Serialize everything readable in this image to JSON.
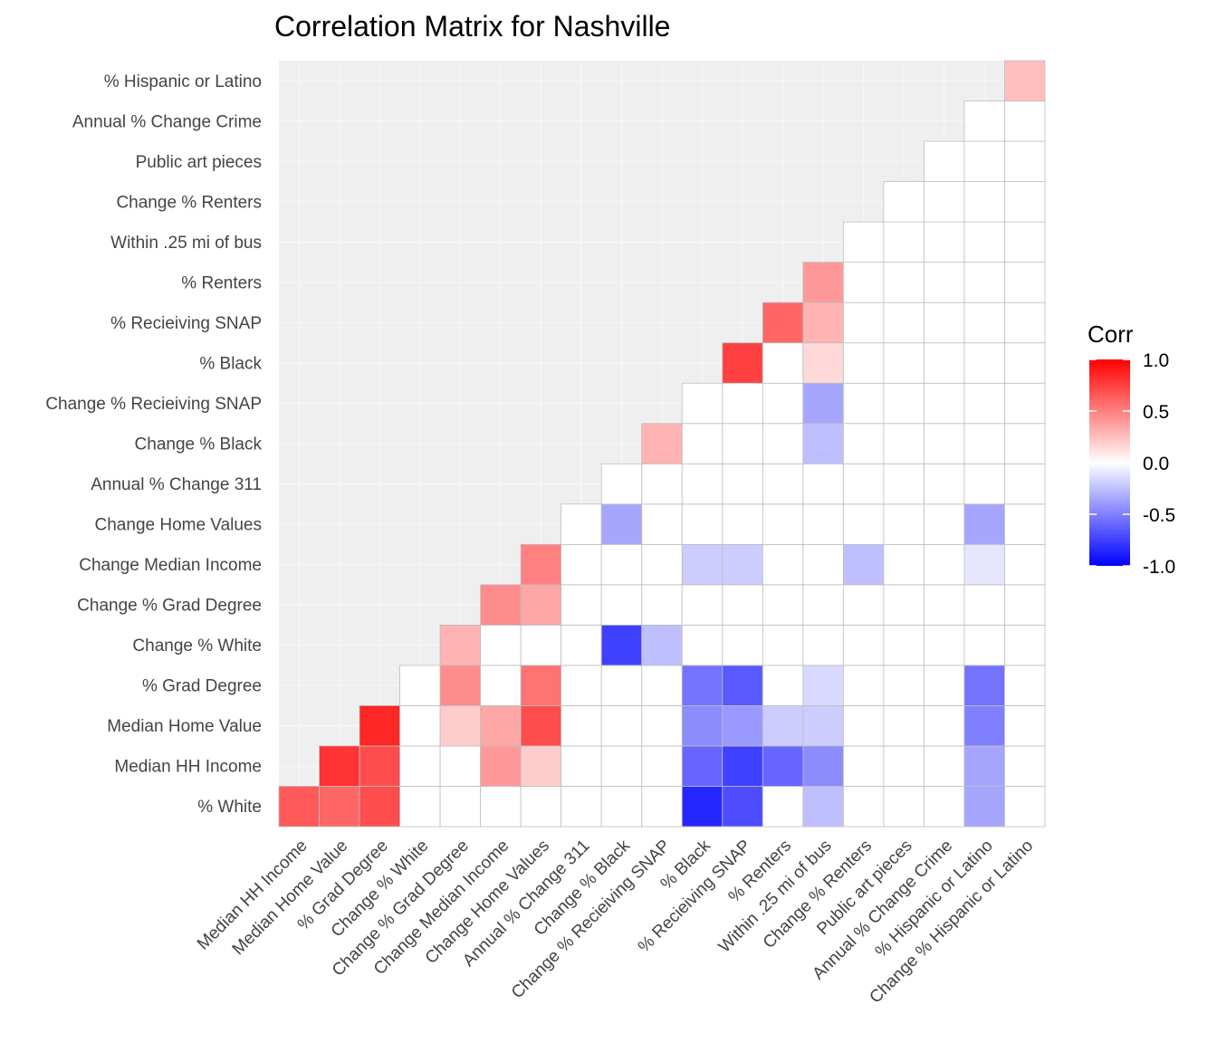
{
  "chart_data": {
    "type": "heatmap",
    "title": "Correlation Matrix for Nashville",
    "x_labels": [
      "Median HH Income",
      "Median Home Value",
      "% Grad Degree",
      "Change % White",
      "Change % Grad Degree",
      "Change Median Income",
      "Change Home Values",
      "Annual % Change 311",
      "Change % Black",
      "Change % Recieiving SNAP",
      "% Black",
      "% Recieiving SNAP",
      "% Renters",
      "Within .25 mi of bus",
      "Change % Renters",
      "Public art pieces",
      "Annual % Change Crime",
      "% Hispanic or Latino",
      "Change % Hispanic or Latino"
    ],
    "y_labels": [
      "% White",
      "Median HH Income",
      "Median Home Value",
      "% Grad Degree",
      "Change % White",
      "Change % Grad Degree",
      "Change Median Income",
      "Change Home Values",
      "Annual % Change 311",
      "Change % Black",
      "Change % Recieiving SNAP",
      "% Black",
      "% Recieiving SNAP",
      "% Renters",
      "Within .25 mi of bus",
      "Change % Renters",
      "Public art pieces",
      "Annual % Change Crime",
      "% Hispanic or Latino"
    ],
    "values": [
      [
        0.65,
        0.6,
        0.7,
        0,
        0,
        0,
        0,
        0,
        0,
        0,
        -0.85,
        -0.7,
        0,
        -0.25,
        0,
        0,
        0,
        -0.35,
        0
      ],
      [
        null,
        0.8,
        0.7,
        0,
        0,
        0.4,
        0.2,
        0,
        0,
        0,
        -0.6,
        -0.75,
        -0.6,
        -0.45,
        0,
        0,
        0,
        -0.35,
        0
      ],
      [
        null,
        null,
        0.85,
        0,
        0.2,
        0.35,
        0.7,
        0,
        0,
        0,
        -0.45,
        -0.4,
        -0.2,
        -0.2,
        0,
        0,
        0,
        -0.5,
        0
      ],
      [
        null,
        null,
        null,
        0,
        0.45,
        0,
        0.55,
        0,
        0,
        0,
        -0.55,
        -0.65,
        0,
        -0.15,
        0,
        0,
        0,
        -0.55,
        0
      ],
      [
        null,
        null,
        null,
        null,
        0.3,
        0,
        0,
        0,
        -0.75,
        -0.25,
        0,
        0,
        0,
        0,
        0,
        0,
        0,
        0,
        0
      ],
      [
        null,
        null,
        null,
        null,
        null,
        0.45,
        0.35,
        0,
        0,
        0,
        0,
        0,
        0,
        0,
        0,
        0,
        0,
        0,
        0
      ],
      [
        null,
        null,
        null,
        null,
        null,
        null,
        0.5,
        0,
        0,
        0,
        -0.2,
        -0.2,
        0,
        0,
        -0.25,
        0,
        0,
        -0.1,
        0
      ],
      [
        null,
        null,
        null,
        null,
        null,
        null,
        null,
        0,
        -0.35,
        0,
        0,
        0,
        0,
        0,
        0,
        0,
        0,
        -0.35,
        0
      ],
      [
        null,
        null,
        null,
        null,
        null,
        null,
        null,
        null,
        0,
        0,
        0,
        0,
        0,
        0,
        0,
        0,
        0,
        0,
        0
      ],
      [
        null,
        null,
        null,
        null,
        null,
        null,
        null,
        null,
        null,
        0.3,
        0,
        0,
        0,
        -0.25,
        0,
        0,
        0,
        0,
        0
      ],
      [
        null,
        null,
        null,
        null,
        null,
        null,
        null,
        null,
        null,
        null,
        0,
        0,
        0,
        -0.35,
        0,
        0,
        0,
        0,
        0
      ],
      [
        null,
        null,
        null,
        null,
        null,
        null,
        null,
        null,
        null,
        null,
        null,
        0.75,
        0,
        0.15,
        0,
        0,
        0,
        0,
        0
      ],
      [
        null,
        null,
        null,
        null,
        null,
        null,
        null,
        null,
        null,
        null,
        null,
        null,
        0.6,
        0.3,
        0,
        0,
        0,
        0,
        0
      ],
      [
        null,
        null,
        null,
        null,
        null,
        null,
        null,
        null,
        null,
        null,
        null,
        null,
        null,
        0.4,
        0,
        0,
        0,
        0,
        0
      ],
      [
        null,
        null,
        null,
        null,
        null,
        null,
        null,
        null,
        null,
        null,
        null,
        null,
        null,
        null,
        0,
        0,
        0,
        0,
        0
      ],
      [
        null,
        null,
        null,
        null,
        null,
        null,
        null,
        null,
        null,
        null,
        null,
        null,
        null,
        null,
        null,
        0,
        0,
        0,
        0
      ],
      [
        null,
        null,
        null,
        null,
        null,
        null,
        null,
        null,
        null,
        null,
        null,
        null,
        null,
        null,
        null,
        null,
        0,
        0,
        0
      ],
      [
        null,
        null,
        null,
        null,
        null,
        null,
        null,
        null,
        null,
        null,
        null,
        null,
        null,
        null,
        null,
        null,
        null,
        0,
        0
      ],
      [
        null,
        null,
        null,
        null,
        null,
        null,
        null,
        null,
        null,
        null,
        null,
        null,
        null,
        null,
        null,
        null,
        null,
        null,
        0.25
      ]
    ],
    "value_range": [
      -1,
      1
    ],
    "colors": {
      "low": "#0000FF",
      "mid": "#FFFFFF",
      "high": "#FF0000",
      "panel": "#EFEFEF",
      "tile_border": "#BDBDBD"
    },
    "legend": {
      "title": "Corr",
      "position": "right",
      "ticks": [
        "1.0",
        "0.5",
        "0.0",
        "-0.5",
        "-1.0"
      ],
      "tick_values": [
        1,
        0.5,
        0,
        -0.5,
        -1
      ]
    }
  }
}
